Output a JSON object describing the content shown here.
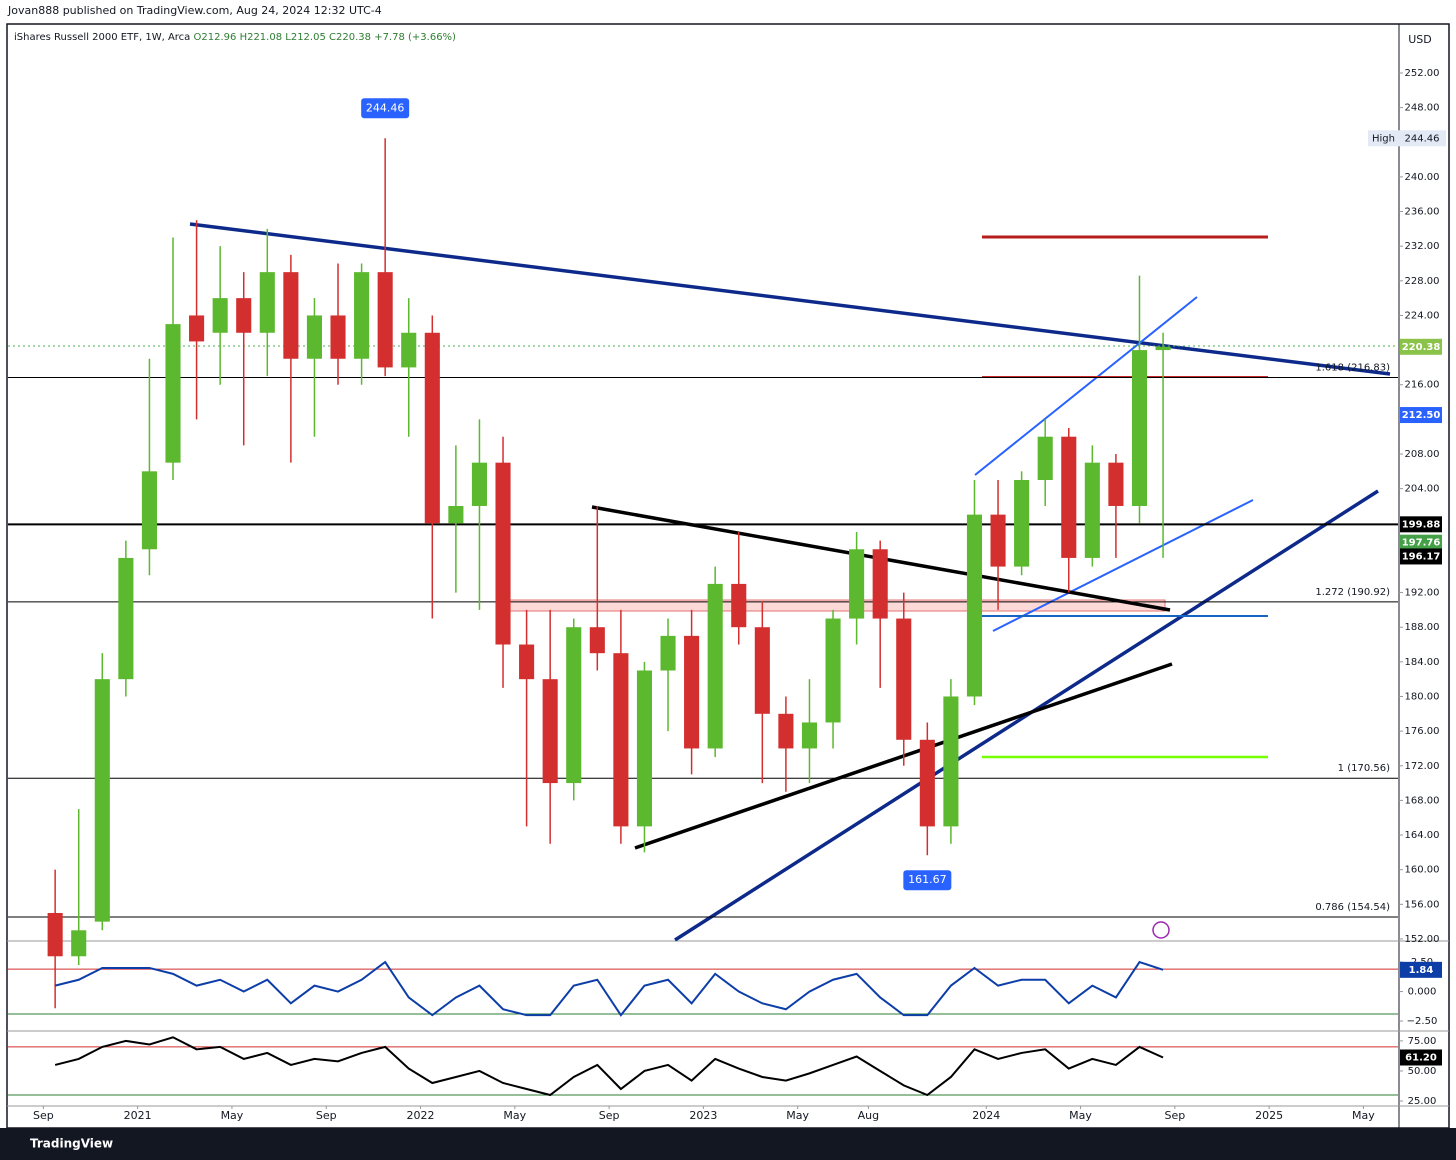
{
  "header": "Jovan888 published on TradingView.com, Aug 24, 2024 12:32 UTC-4",
  "footer": "TradingView",
  "currency": "USD",
  "chart_data": [
    {
      "type": "candlestick",
      "legend": {
        "symbol": "iShares Russell 2000 ETF, 1W, Arca",
        "fields": [
          "O212.96",
          "H221.08",
          "L212.05",
          "C220.38",
          "+7.78 (+3.66%)"
        ]
      },
      "up_color": "#5cb82e",
      "down_color": "#d32f2f",
      "x": [
        "2020-09",
        "2020-10",
        "2020-11",
        "2020-12",
        "2021-01",
        "2021-02",
        "2021-03",
        "2021-04",
        "2021-05",
        "2021-06",
        "2021-07",
        "2021-08",
        "2021-09",
        "2021-10",
        "2021-11",
        "2021-12",
        "2022-01",
        "2022-02",
        "2022-03",
        "2022-04",
        "2022-05",
        "2022-06",
        "2022-07",
        "2022-08",
        "2022-09",
        "2022-10",
        "2022-11",
        "2022-12",
        "2023-01",
        "2023-02",
        "2023-03",
        "2023-04",
        "2023-05",
        "2023-06",
        "2023-07",
        "2023-08",
        "2023-09",
        "2023-10",
        "2023-11",
        "2023-12",
        "2024-01",
        "2024-02",
        "2024-03",
        "2024-04",
        "2024-05",
        "2024-06",
        "2024-07",
        "2024-08"
      ],
      "open": [
        155,
        150,
        154,
        182,
        197,
        207,
        224,
        222,
        226,
        222,
        229,
        219,
        224,
        219,
        229,
        218,
        222,
        200,
        202,
        207,
        186,
        182,
        170,
        188,
        185,
        165,
        183,
        187,
        174,
        193,
        188,
        178,
        174,
        177,
        189,
        197,
        189,
        175,
        165,
        180,
        201,
        195,
        205,
        210,
        196,
        207,
        202,
        220
      ],
      "high": [
        160,
        167,
        185,
        198,
        219,
        233,
        235,
        232,
        229,
        234,
        231,
        226,
        230,
        230,
        244.46,
        226,
        224,
        209,
        212,
        210,
        190,
        190,
        189,
        202,
        190,
        184,
        189,
        190,
        195,
        199,
        191,
        180,
        182,
        190,
        199,
        198,
        192,
        177,
        182,
        205,
        205,
        206,
        212,
        211,
        209,
        208,
        228.6,
        222
      ],
      "low": [
        144,
        149,
        153,
        180,
        194,
        205,
        212,
        216,
        209,
        217,
        207,
        210,
        216,
        216,
        217,
        210,
        189,
        192,
        190,
        181,
        165,
        163,
        168,
        183,
        163,
        162,
        176,
        171,
        173,
        186,
        170,
        169,
        170,
        174,
        186,
        181,
        172,
        161.67,
        163,
        179,
        190,
        194,
        202,
        192,
        195,
        196,
        200,
        196
      ],
      "close": [
        150,
        153,
        182,
        196,
        206,
        223,
        221,
        226,
        222,
        229,
        219,
        224,
        219,
        229,
        218,
        222,
        200,
        202,
        207,
        186,
        182,
        170,
        188,
        185,
        165,
        183,
        187,
        174,
        193,
        188,
        178,
        174,
        177,
        189,
        197,
        189,
        175,
        165,
        180,
        201,
        195,
        205,
        210,
        196,
        207,
        202,
        220,
        220.38
      ],
      "xlim": [
        "2020-07-16",
        "2025-06-15"
      ],
      "xticks": [
        {
          "value": "2020-09-01",
          "label": "Sep"
        },
        {
          "value": "2021-01-01",
          "label": "2021"
        },
        {
          "value": "2021-05-01",
          "label": "May"
        },
        {
          "value": "2021-09-01",
          "label": "Sep"
        },
        {
          "value": "2022-01-01",
          "label": "2022"
        },
        {
          "value": "2022-05-01",
          "label": "May"
        },
        {
          "value": "2022-09-01",
          "label": "Sep"
        },
        {
          "value": "2023-01-01",
          "label": "2023"
        },
        {
          "value": "2023-05-01",
          "label": "May"
        },
        {
          "value": "2023-08-01",
          "label": "Aug"
        },
        {
          "value": "2024-01-01",
          "label": "2024"
        },
        {
          "value": "2024-05-01",
          "label": "May"
        },
        {
          "value": "2024-09-01",
          "label": "Sep"
        },
        {
          "value": "2025-01-01",
          "label": "2025"
        },
        {
          "value": "2025-05-01",
          "label": "May"
        }
      ],
      "ylim": [
        151.88,
        257.54
      ],
      "yticks": [
        {
          "value": 152,
          "label": "152.00"
        },
        {
          "value": 156,
          "label": "156.00"
        },
        {
          "value": 160,
          "label": "160.00"
        },
        {
          "value": 164,
          "label": "164.00"
        },
        {
          "value": 168,
          "label": "168.00"
        },
        {
          "value": 172,
          "label": "172.00"
        },
        {
          "value": 176,
          "label": "176.00"
        },
        {
          "value": 180,
          "label": "180.00"
        },
        {
          "value": 184,
          "label": "184.00"
        },
        {
          "value": 188,
          "label": "188.00"
        },
        {
          "value": 192,
          "label": "192.00"
        },
        {
          "value": 196,
          "label": "196.00"
        },
        {
          "value": 200,
          "label": "200.00"
        },
        {
          "value": 204,
          "label": "204.00"
        },
        {
          "value": 208,
          "label": "208.00"
        },
        {
          "value": 212,
          "label": "212.00"
        },
        {
          "value": 216,
          "label": "216.00"
        },
        {
          "value": 220,
          "label": "220.00"
        },
        {
          "value": 224,
          "label": "224.00"
        },
        {
          "value": 228,
          "label": "228.00"
        },
        {
          "value": 232,
          "label": "232.00"
        },
        {
          "value": 236,
          "label": "236.00"
        },
        {
          "value": 240,
          "label": "240.00"
        },
        {
          "value": 244,
          "label": "244.00"
        },
        {
          "value": 248,
          "label": "248.00"
        },
        {
          "value": 252,
          "label": "252.00"
        }
      ],
      "levels": [
        {
          "value": 216.83,
          "label": "1.618 (216.83)",
          "width": 1
        },
        {
          "value": 190.92,
          "label": "1.272 (190.92)",
          "width": 1
        },
        {
          "value": 170.56,
          "label": "1 (170.56)",
          "width": 1
        },
        {
          "value": 154.54,
          "label": "0.786 (154.54)",
          "width": 1
        },
        {
          "value": 199.88,
          "width": 2
        }
      ],
      "axis_badges": [
        {
          "value": 220.38,
          "label": "220.38",
          "color": "#8bc34a"
        },
        {
          "value": 212.5,
          "label": "212.50",
          "color": "#2962ff"
        },
        {
          "value": 199.88,
          "label": "199.88",
          "color": "#000000"
        },
        {
          "value": 197.76,
          "label": "197.76",
          "color": "#43a047"
        },
        {
          "value": 196.17,
          "label": "196.17",
          "color": "#000000"
        }
      ],
      "high_marker": {
        "text": "High",
        "value": 244.46
      },
      "extremes": [
        {
          "value": 244.46,
          "x": "2021-11",
          "side": "above"
        },
        {
          "value": 161.67,
          "x": "2023-10",
          "side": "below"
        }
      ]
    },
    {
      "type": "line",
      "x": [
        "2020-09",
        "2020-10",
        "2020-11",
        "2020-12",
        "2021-01",
        "2021-02",
        "2021-03",
        "2021-04",
        "2021-05",
        "2021-06",
        "2021-07",
        "2021-08",
        "2021-09",
        "2021-10",
        "2021-11",
        "2021-12",
        "2022-01",
        "2022-02",
        "2022-03",
        "2022-04",
        "2022-05",
        "2022-06",
        "2022-07",
        "2022-08",
        "2022-09",
        "2022-10",
        "2022-11",
        "2022-12",
        "2023-01",
        "2023-02",
        "2023-03",
        "2023-04",
        "2023-05",
        "2023-06",
        "2023-07",
        "2023-08",
        "2023-09",
        "2023-10",
        "2023-11",
        "2023-12",
        "2024-01",
        "2024-02",
        "2024-03",
        "2024-04",
        "2024-05",
        "2024-06",
        "2024-07",
        "2024-08"
      ],
      "series": [
        {
          "color": "#0d3ea8",
          "values": [
            0.5,
            1,
            2,
            2,
            2,
            1.5,
            0.5,
            1,
            0,
            1,
            -1,
            0.5,
            0,
            1,
            2.5,
            -0.5,
            -2,
            -0.5,
            0.5,
            -1.5,
            -2,
            -2,
            0.5,
            1,
            -2,
            0.5,
            1,
            -1,
            1.5,
            0,
            -1,
            -1.5,
            0,
            1,
            1.5,
            -0.5,
            -2,
            -2,
            0.5,
            2,
            0.5,
            1,
            1,
            -1,
            0.5,
            -0.5,
            2.5,
            1.84
          ]
        }
      ],
      "hlines": [
        {
          "value": 1.9,
          "color": "#d32f2f"
        },
        {
          "value": -1.9,
          "color": "#2e7d32"
        }
      ],
      "ylim": [
        -3.26,
        4.2
      ],
      "yticks": [
        {
          "value": 2.5,
          "label": "2.50"
        },
        {
          "value": 0,
          "label": "0.000"
        },
        {
          "value": -2.5,
          "label": "−2.50"
        }
      ],
      "axis_badges": [
        {
          "value": 1.84,
          "label": "1.84",
          "color": "#0d3ea8"
        }
      ]
    },
    {
      "type": "line",
      "x": [
        "2020-09",
        "2020-10",
        "2020-11",
        "2020-12",
        "2021-01",
        "2021-02",
        "2021-03",
        "2021-04",
        "2021-05",
        "2021-06",
        "2021-07",
        "2021-08",
        "2021-09",
        "2021-10",
        "2021-11",
        "2021-12",
        "2022-01",
        "2022-02",
        "2022-03",
        "2022-04",
        "2022-05",
        "2022-06",
        "2022-07",
        "2022-08",
        "2022-09",
        "2022-10",
        "2022-11",
        "2022-12",
        "2023-01",
        "2023-02",
        "2023-03",
        "2023-04",
        "2023-05",
        "2023-06",
        "2023-07",
        "2023-08",
        "2023-09",
        "2023-10",
        "2023-11",
        "2023-12",
        "2024-01",
        "2024-02",
        "2024-03",
        "2024-04",
        "2024-05",
        "2024-06",
        "2024-07",
        "2024-08"
      ],
      "series": [
        {
          "color": "#000000",
          "values": [
            55,
            60,
            70,
            75,
            72,
            78,
            68,
            70,
            60,
            65,
            55,
            60,
            58,
            65,
            70,
            52,
            40,
            45,
            50,
            40,
            35,
            30,
            45,
            55,
            35,
            50,
            55,
            42,
            60,
            52,
            45,
            42,
            48,
            55,
            62,
            50,
            38,
            30,
            45,
            68,
            60,
            65,
            68,
            52,
            60,
            55,
            70,
            61.2
          ]
        }
      ],
      "hlines": [
        {
          "value": 70,
          "color": "#d32f2f"
        },
        {
          "value": 30,
          "color": "#2e7d32"
        }
      ],
      "ylim": [
        21.7,
        82.4
      ],
      "yticks": [
        {
          "value": 75,
          "label": "75.00"
        },
        {
          "value": 50,
          "label": "50.00"
        },
        {
          "value": 25,
          "label": "25.00"
        }
      ],
      "axis_badges": [
        {
          "value": 61.2,
          "label": "61.20",
          "color": "#000000"
        }
      ]
    }
  ]
}
